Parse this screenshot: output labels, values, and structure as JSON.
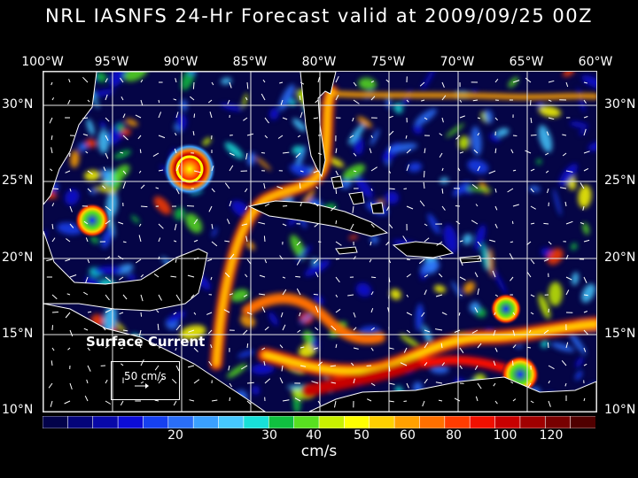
{
  "title": "NRL IASNFS  24-Hr Forecast valid at 2009/09/25 00Z",
  "longitude_labels": [
    "100°W",
    "95°W",
    "90°W",
    "85°W",
    "80°W",
    "75°W",
    "70°W",
    "65°W",
    "60°W"
  ],
  "latitude_labels": [
    "30°N",
    "25°N",
    "20°N",
    "15°N",
    "10°N"
  ],
  "annotation": "Surface Current",
  "reference_vector_label": "50 cm/s",
  "colorbar": {
    "tick_labels": [
      "20",
      "30",
      "40",
      "50",
      "60",
      "80",
      "100",
      "120"
    ],
    "units": "cm/s",
    "colors": [
      "#02024a",
      "#04047a",
      "#0808a8",
      "#0c0cd6",
      "#1640f0",
      "#2a6ef8",
      "#3aa0ff",
      "#46c8ff",
      "#18e0d8",
      "#10c040",
      "#58e020",
      "#c8f000",
      "#ffff00",
      "#ffd000",
      "#ffa000",
      "#ff7000",
      "#ff3c00",
      "#f01000",
      "#c80000",
      "#a00000",
      "#780000",
      "#500000"
    ]
  },
  "colors": {
    "ocean_background": "#050546",
    "land": "#000000",
    "coast": "#ffffff"
  }
}
